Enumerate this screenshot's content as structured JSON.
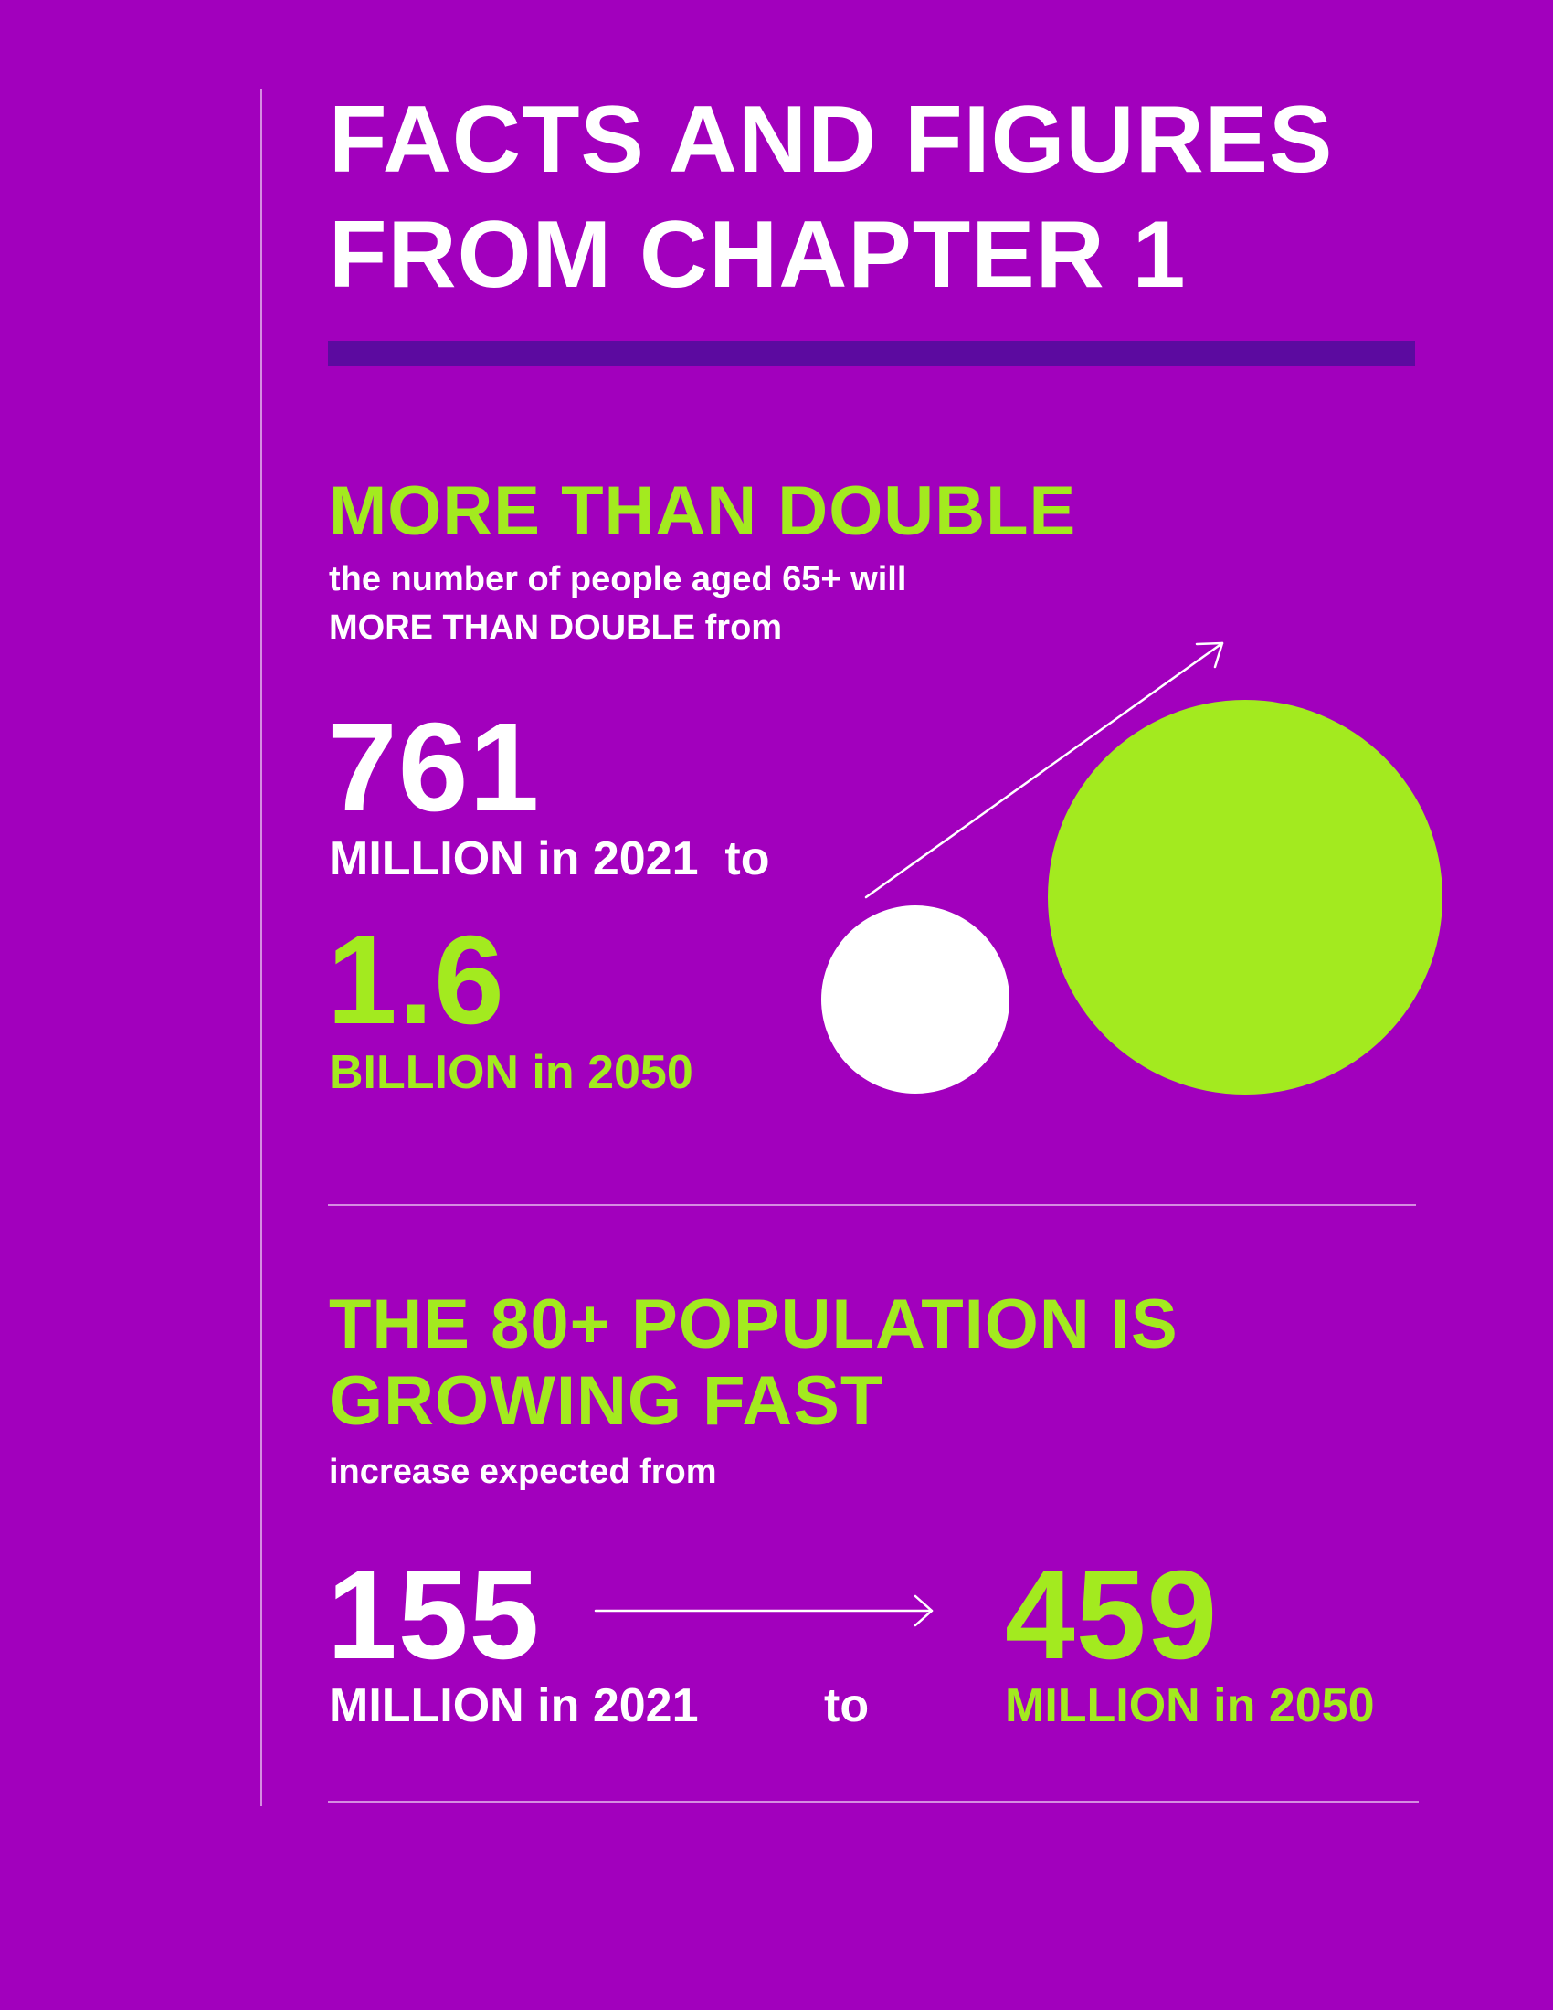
{
  "title": {
    "line1": "FACTS AND FIGURES",
    "line2": "FROM CHAPTER 1"
  },
  "section1": {
    "heading": "MORE THAN DOUBLE",
    "desc_line1": "the number of people aged 65+ will",
    "desc_line2": "MORE THAN DOUBLE from",
    "from_value": "761",
    "from_unit": "MILLION in 2021  to",
    "to_value": "1.6",
    "to_unit": "BILLION in 2050"
  },
  "section2": {
    "heading_line1": "THE 80+ POPULATION IS",
    "heading_line2": "GROWING FAST",
    "desc": "increase expected from",
    "from_value": "155",
    "from_unit": "MILLION in 2021",
    "connector": "to",
    "to_value": "459",
    "to_unit": "MILLION in 2050"
  },
  "colors": {
    "background": "#a200bd",
    "accent_green": "#a3ea1f",
    "title_bar": "#5c0aa0",
    "text_white": "#ffffff"
  },
  "icons": {
    "diagonal_arrow": "arrow-up-right-icon",
    "horizontal_arrow": "arrow-right-icon"
  }
}
